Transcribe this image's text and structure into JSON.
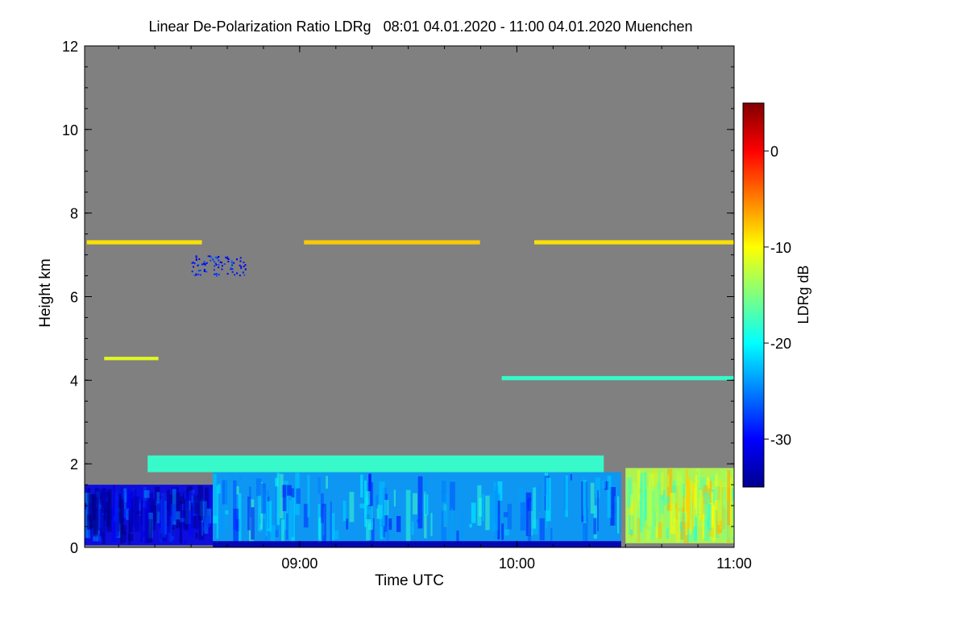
{
  "chart_data": {
    "type": "heatmap",
    "title": "Linear De-Polarization Ratio LDRg   08:01 04.01.2020 - 11:00 04.01.2020 Muenchen",
    "xlabel": "Time UTC",
    "ylabel": "Height km",
    "colorbar_label": "LDRg dB",
    "x_range_hours": [
      8.01,
      11.0
    ],
    "y_range_km": [
      0,
      12
    ],
    "x_ticks": [
      {
        "value": 9.0,
        "label": "09:00"
      },
      {
        "value": 10.0,
        "label": "10:00"
      },
      {
        "value": 11.0,
        "label": "11:00"
      }
    ],
    "y_ticks": [
      {
        "value": 0,
        "label": "0"
      },
      {
        "value": 2,
        "label": "2"
      },
      {
        "value": 4,
        "label": "4"
      },
      {
        "value": 6,
        "label": "6"
      },
      {
        "value": 8,
        "label": "8"
      },
      {
        "value": 10,
        "label": "10"
      },
      {
        "value": 12,
        "label": "12"
      }
    ],
    "colorbar_range_db": [
      -35,
      5
    ],
    "colorbar_ticks": [
      {
        "value": 0,
        "label": "0"
      },
      {
        "value": -10,
        "label": "-10"
      },
      {
        "value": -20,
        "label": "-20"
      },
      {
        "value": -30,
        "label": "-30"
      }
    ],
    "background_color": "#808080",
    "features": [
      {
        "name": "cirrus-layer-a",
        "kind": "band",
        "t0": 8.02,
        "t1": 8.55,
        "h0": 7.25,
        "h1": 7.35,
        "ldr": -9
      },
      {
        "name": "cirrus-layer-b",
        "kind": "band",
        "t0": 9.02,
        "t1": 9.83,
        "h0": 7.25,
        "h1": 7.35,
        "ldr": -8
      },
      {
        "name": "cirrus-layer-c",
        "kind": "band",
        "t0": 10.08,
        "t1": 11.0,
        "h0": 7.25,
        "h1": 7.35,
        "ldr": -9
      },
      {
        "name": "ice-fall-streak",
        "kind": "blob",
        "t0": 8.5,
        "t1": 8.75,
        "h0": 6.5,
        "h1": 7.0,
        "ldr": -29
      },
      {
        "name": "mid-layer-a",
        "kind": "band",
        "t0": 8.1,
        "t1": 8.35,
        "h0": 4.48,
        "h1": 4.56,
        "ldr": -11
      },
      {
        "name": "mid-layer-b",
        "kind": "band",
        "t0": 9.93,
        "t1": 11.0,
        "h0": 4.0,
        "h1": 4.1,
        "ldr": -18
      },
      {
        "name": "boundary-layer-early",
        "kind": "box",
        "t0": 8.01,
        "t1": 8.6,
        "h0": 0.05,
        "h1": 1.5,
        "ldr": -31
      },
      {
        "name": "boundary-layer-main",
        "kind": "box",
        "t0": 8.6,
        "t1": 10.48,
        "h0": 0.1,
        "h1": 1.8,
        "ldr": -24
      },
      {
        "name": "surface-layer",
        "kind": "band",
        "t0": 8.6,
        "t1": 10.48,
        "h0": 0.0,
        "h1": 0.15,
        "ldr": -33
      },
      {
        "name": "boundary-layer-top",
        "kind": "band",
        "t0": 8.3,
        "t1": 10.4,
        "h0": 1.8,
        "h1": 2.2,
        "ldr": -18
      },
      {
        "name": "late-aerosol",
        "kind": "box",
        "t0": 10.5,
        "t1": 11.0,
        "h0": 0.1,
        "h1": 1.9,
        "ldr": -13
      }
    ]
  }
}
